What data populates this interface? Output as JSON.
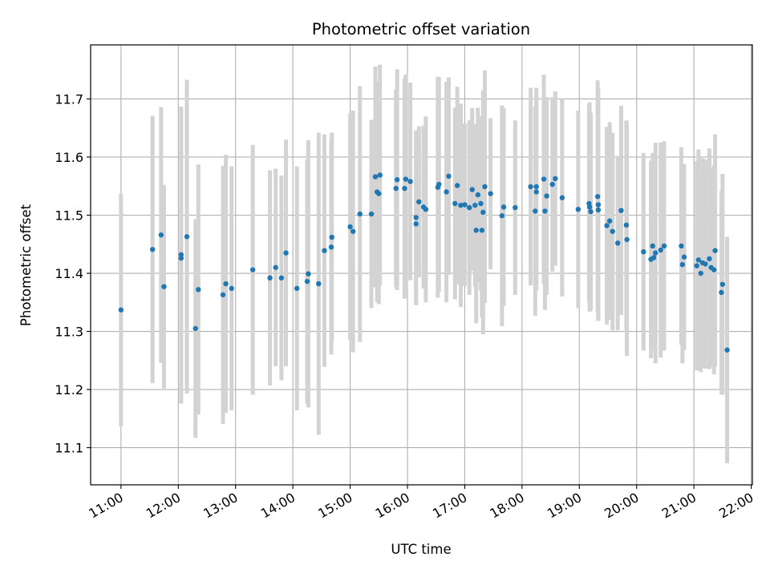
{
  "chart_data": {
    "type": "scatter",
    "title": "Photometric offset variation",
    "xlabel": "UTC time",
    "ylabel": "Photometric offset",
    "x_unit": "hours UTC",
    "xlim": [
      10.47,
      22.02
    ],
    "ylim": [
      11.036,
      11.793
    ],
    "x_ticks": [
      11,
      12,
      13,
      14,
      15,
      16,
      17,
      18,
      19,
      20,
      21,
      22
    ],
    "x_tick_labels": [
      "11:00",
      "12:00",
      "13:00",
      "14:00",
      "15:00",
      "16:00",
      "17:00",
      "18:00",
      "19:00",
      "20:00",
      "21:00",
      "22:00"
    ],
    "y_ticks": [
      11.1,
      11.2,
      11.3,
      11.4,
      11.5,
      11.6,
      11.7
    ],
    "y_tick_labels": [
      "11.1",
      "11.2",
      "11.3",
      "11.4",
      "11.5",
      "11.6",
      "11.7"
    ],
    "grid": true,
    "colors": {
      "points": "#1f77b4",
      "error_bars": "#d3d3d3",
      "grid": "#b0b0b0"
    },
    "series": [
      {
        "x": [
          11.0,
          11.55,
          11.7,
          11.75,
          12.05,
          12.05,
          12.15,
          12.3,
          12.35,
          12.78,
          12.83,
          12.93,
          13.3,
          13.6,
          13.7,
          13.8,
          13.88,
          14.07,
          14.25,
          14.27,
          14.45,
          14.55,
          14.67,
          14.68,
          15.0,
          15.05,
          15.17,
          15.37,
          15.44,
          15.47,
          15.52,
          15.5,
          15.8,
          15.82,
          15.95,
          15.97,
          16.05,
          16.15,
          16.15,
          16.2,
          16.28,
          16.32,
          16.53,
          16.55,
          16.68,
          16.72,
          16.83,
          16.87,
          16.93,
          17.0,
          17.08,
          17.13,
          17.18,
          17.2,
          17.23,
          17.28,
          17.3,
          17.32,
          17.35,
          17.45,
          17.65,
          17.68,
          17.88,
          18.15,
          18.23,
          18.25,
          18.25,
          18.38,
          18.4,
          18.43,
          18.53,
          18.58,
          18.7,
          18.98,
          19.17,
          19.18,
          19.2,
          19.32,
          19.33,
          19.33,
          19.48,
          19.53,
          19.58,
          19.67,
          19.73,
          19.82,
          19.83,
          20.12,
          20.25,
          20.28,
          20.3,
          20.33,
          20.42,
          20.48,
          20.78,
          20.8,
          20.83,
          21.05,
          21.08,
          21.12,
          21.15,
          21.2,
          21.27,
          21.3,
          21.35,
          21.37,
          21.48,
          21.5,
          21.58
        ],
        "y": [
          11.337,
          11.441,
          11.466,
          11.377,
          11.426,
          11.432,
          11.463,
          11.305,
          11.372,
          11.363,
          11.382,
          11.374,
          11.406,
          11.392,
          11.41,
          11.392,
          11.435,
          11.374,
          11.386,
          11.399,
          11.382,
          11.439,
          11.445,
          11.462,
          11.48,
          11.472,
          11.502,
          11.502,
          11.566,
          11.54,
          11.569,
          11.537,
          11.546,
          11.561,
          11.546,
          11.562,
          11.558,
          11.485,
          11.496,
          11.523,
          11.514,
          11.51,
          11.548,
          11.553,
          11.54,
          11.567,
          11.52,
          11.551,
          11.517,
          11.518,
          11.513,
          11.544,
          11.517,
          11.474,
          11.535,
          11.52,
          11.474,
          11.505,
          11.549,
          11.537,
          11.499,
          11.514,
          11.513,
          11.549,
          11.507,
          11.54,
          11.549,
          11.562,
          11.507,
          11.533,
          11.553,
          11.563,
          11.53,
          11.51,
          11.52,
          11.514,
          11.506,
          11.532,
          11.518,
          11.509,
          11.482,
          11.49,
          11.472,
          11.452,
          11.508,
          11.483,
          11.458,
          11.437,
          11.424,
          11.447,
          11.427,
          11.435,
          11.44,
          11.447,
          11.447,
          11.415,
          11.428,
          11.413,
          11.423,
          11.4,
          11.418,
          11.416,
          11.425,
          11.41,
          11.406,
          11.439,
          11.367,
          11.381,
          11.268
        ],
        "err": [
          0.2,
          0.23,
          0.22,
          0.175,
          0.25,
          0.255,
          0.27,
          0.188,
          0.215,
          0.222,
          0.222,
          0.21,
          0.215,
          0.185,
          0.17,
          0.176,
          0.195,
          0.21,
          0.21,
          0.23,
          0.26,
          0.2,
          0.185,
          0.18,
          0.195,
          0.208,
          0.22,
          0.162,
          0.19,
          0.19,
          0.19,
          0.19,
          0.17,
          0.19,
          0.19,
          0.18,
          0.17,
          0.14,
          0.15,
          0.13,
          0.14,
          0.16,
          0.19,
          0.185,
          0.19,
          0.17,
          0.165,
          0.17,
          0.175,
          0.14,
          0.15,
          0.14,
          0.14,
          0.16,
          0.15,
          0.15,
          0.15,
          0.21,
          0.2,
          0.13,
          0.19,
          0.17,
          0.15,
          0.17,
          0.18,
          0.17,
          0.17,
          0.18,
          0.17,
          0.17,
          0.15,
          0.15,
          0.17,
          0.17,
          0.17,
          0.18,
          0.17,
          0.2,
          0.2,
          0.19,
          0.17,
          0.17,
          0.17,
          0.15,
          0.18,
          0.18,
          0.2,
          0.17,
          0.17,
          0.16,
          0.16,
          0.19,
          0.185,
          0.18,
          0.17,
          0.17,
          0.16,
          0.18,
          0.19,
          0.17,
          0.18,
          0.18,
          0.19,
          0.17,
          0.18,
          0.2,
          0.175,
          0.19,
          0.195
        ]
      }
    ]
  }
}
